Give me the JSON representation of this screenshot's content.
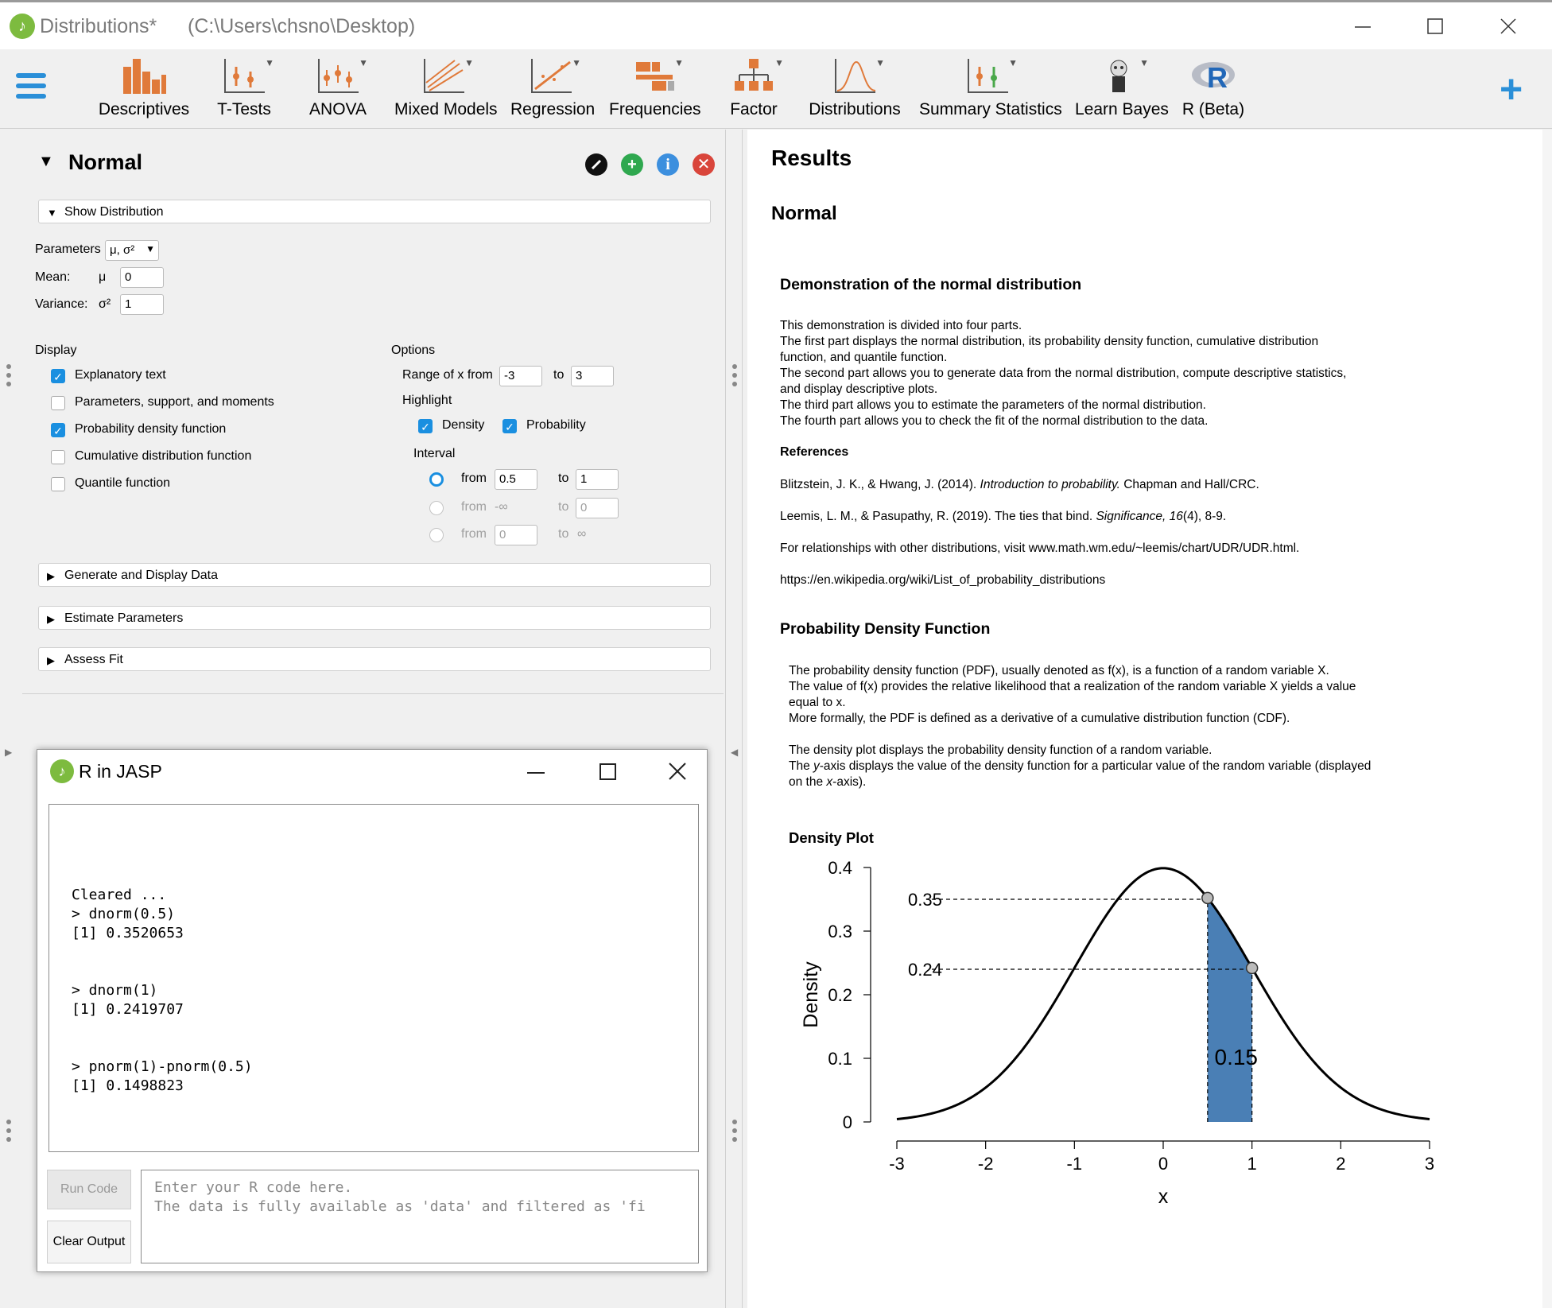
{
  "window": {
    "title": "Distributions*",
    "path": "(C:\\Users\\chsno\\Desktop)"
  },
  "ribbon": {
    "items": [
      {
        "label": "Descriptives",
        "icon": "descriptives-icon"
      },
      {
        "label": "T-Tests",
        "icon": "t-tests-icon"
      },
      {
        "label": "ANOVA",
        "icon": "anova-icon"
      },
      {
        "label": "Mixed Models",
        "icon": "mixed-models-icon"
      },
      {
        "label": "Regression",
        "icon": "regression-icon"
      },
      {
        "label": "Frequencies",
        "icon": "frequencies-icon"
      },
      {
        "label": "Factor",
        "icon": "factor-icon"
      },
      {
        "label": "Distributions",
        "icon": "distributions-icon"
      },
      {
        "label": "Summary Statistics",
        "icon": "summary-statistics-icon"
      },
      {
        "label": "Learn Bayes",
        "icon": "learn-bayes-icon"
      },
      {
        "label": "R (Beta)",
        "icon": "r-icon"
      }
    ]
  },
  "analysis": {
    "title": "Normal",
    "show_distribution": "Show Distribution",
    "parameters_label": "Parameters",
    "parameters_value": "μ, σ²",
    "mean_label": "Mean:",
    "mean_symbol": "μ",
    "mean_value": "0",
    "variance_label": "Variance:",
    "variance_symbol": "σ²",
    "variance_value": "1",
    "display_label": "Display",
    "display_options": [
      {
        "label": "Explanatory text",
        "checked": true
      },
      {
        "label": "Parameters, support, and moments",
        "checked": false
      },
      {
        "label": "Probability density function",
        "checked": true
      },
      {
        "label": "Cumulative distribution function",
        "checked": false
      },
      {
        "label": "Quantile function",
        "checked": false
      }
    ],
    "options_label": "Options",
    "range_label": "Range of x from",
    "range_from": "-3",
    "range_to_label": "to",
    "range_to": "3",
    "highlight_label": "Highlight",
    "highlight_density": "Density",
    "highlight_probability": "Probability",
    "interval_label": "Interval",
    "interval_rows": [
      {
        "from_label": "from",
        "from_value": "0.5",
        "to_label": "to",
        "to_value": "1",
        "selected": true
      },
      {
        "from_label": "from",
        "from_value": "-∞",
        "to_label": "to",
        "to_value": "0",
        "selected": false
      },
      {
        "from_label": "from",
        "from_value": "0",
        "to_label": "to",
        "to_value": "∞",
        "selected": false
      }
    ],
    "sections": [
      "Generate and Display Data",
      "Estimate Parameters",
      "Assess Fit"
    ]
  },
  "r_window": {
    "title": "R in JASP",
    "output": "Cleared ...\n> dnorm(0.5)\n[1] 0.3520653\n\n\n> dnorm(1)\n[1] 0.2419707\n\n\n> pnorm(1)-pnorm(0.5)\n[1] 0.1498823",
    "run_button": "Run Code",
    "clear_button": "Clear Output",
    "input_placeholder_1": "Enter your R code here.",
    "input_placeholder_2": "The data is fully available as 'data' and filtered as 'fi"
  },
  "results": {
    "heading": "Results",
    "subheading": "Normal",
    "demo_title": "Demonstration of the normal distribution",
    "demo_lines": [
      "This demonstration is divided into four parts.",
      "The first part displays the normal distribution, its probability density function, cumulative distribution",
      "function, and quantile function.",
      "The second part allows you to generate data from the normal distribution, compute descriptive statistics,",
      "and display descriptive plots.",
      "The third part allows you to estimate the parameters of the normal distribution.",
      "The fourth part allows you to check the fit of the normal distribution to the data."
    ],
    "references_title": "References",
    "ref1_a": "Blitzstein, J. K., & Hwang, J. (2014). ",
    "ref1_b": "Introduction to probability.",
    "ref1_c": " Chapman and Hall/CRC.",
    "ref2_a": "Leemis, L. M., & Pasupathy, R. (2019). The ties that bind. ",
    "ref2_b": "Significance, 16",
    "ref2_c": "(4), 8-9.",
    "ref3": "For relationships with other distributions, visit www.math.wm.edu/~leemis/chart/UDR/UDR.html.",
    "ref4": "https://en.wikipedia.org/wiki/List_of_probability_distributions",
    "pdf_title": "Probability Density Function",
    "pdf_lines": [
      "The probability density function (PDF), usually denoted as f(x), is a function of a random variable X.",
      "The value of f(x) provides the relative likelihood that a realization of the random variable X yields a value",
      "equal to x.",
      "More formally, the PDF is defined as a derivative of a cumulative distribution function (CDF)."
    ],
    "pdf_lines2a": "The density plot displays the probability density function of a random variable.",
    "pdf_lines2b_1": "The ",
    "pdf_lines2b_2": "y",
    "pdf_lines2b_3": "-axis displays the value of the density function for a particular value of the random variable (displayed",
    "pdf_lines2c_1": "on the ",
    "pdf_lines2c_2": "x",
    "pdf_lines2c_3": "-axis)."
  },
  "chart_data": {
    "type": "line",
    "title": "Density Plot",
    "xlabel": "x",
    "ylabel": "Density",
    "xlim": [
      -3,
      3
    ],
    "ylim": [
      0,
      0.4
    ],
    "x_ticks": [
      "-3",
      "-2",
      "-1",
      "0",
      "1",
      "2",
      "3"
    ],
    "y_ticks": [
      "0",
      "0.1",
      "0.2",
      "0.3",
      "0.4"
    ],
    "series": [
      {
        "function": "dnorm(x, 0, 1)"
      }
    ],
    "highlight_interval": [
      0.5,
      1
    ],
    "highlight_points": [
      {
        "x": 0.5,
        "y": 0.35,
        "label": "0.35"
      },
      {
        "x": 1,
        "y": 0.24,
        "label": "0.24"
      }
    ],
    "area_label": "0.15",
    "colors": {
      "area": "#4a7fb5",
      "line": "#000000"
    }
  }
}
